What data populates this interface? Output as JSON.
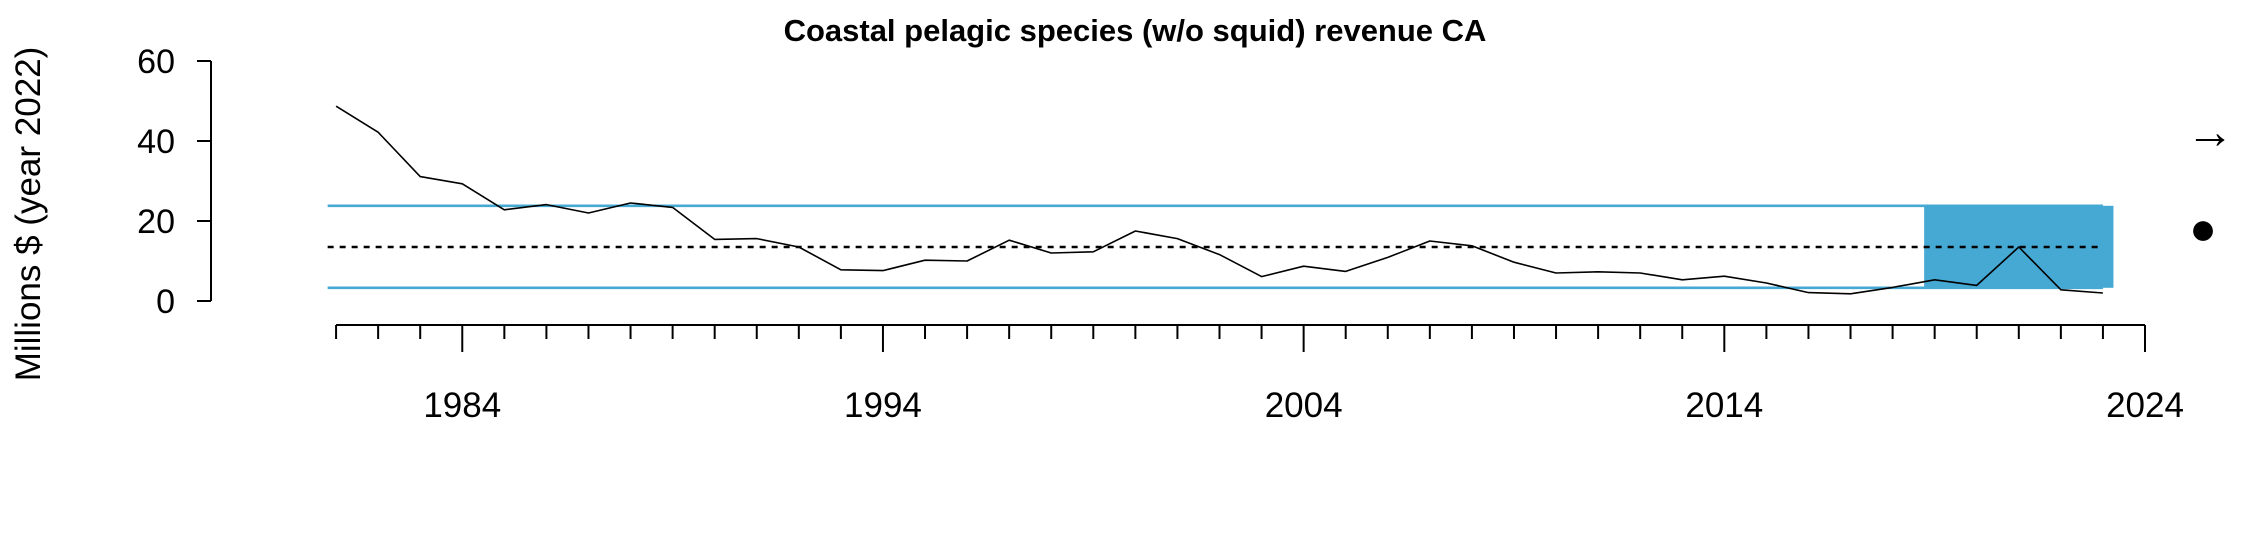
{
  "chart_data": {
    "type": "line",
    "title": "Coastal pelagic species (w/o squid) revenue CA",
    "xlabel": "",
    "ylabel": "Millions $ (year 2022)",
    "xlim": [
      1980,
      2024
    ],
    "ylim": [
      0,
      60
    ],
    "x_ticks": [
      1984,
      1994,
      2004,
      2014,
      2024
    ],
    "y_ticks": [
      0,
      20,
      40,
      60
    ],
    "x": [
      1981,
      1982,
      1983,
      1984,
      1985,
      1986,
      1987,
      1988,
      1989,
      1990,
      1991,
      1992,
      1993,
      1994,
      1995,
      1996,
      1997,
      1998,
      1999,
      2000,
      2001,
      2002,
      2003,
      2004,
      2005,
      2006,
      2007,
      2008,
      2009,
      2010,
      2011,
      2012,
      2013,
      2014,
      2015,
      2016,
      2017,
      2018,
      2019,
      2020,
      2021,
      2022,
      2023
    ],
    "series": [
      {
        "values": [
          48.7,
          42.2,
          31.1,
          29.3,
          22.8,
          24.1,
          22.0,
          24.5,
          23.4,
          15.4,
          15.6,
          13.5,
          7.8,
          7.6,
          10.2,
          10.0,
          15.2,
          12.0,
          12.3,
          17.5,
          15.6,
          11.6,
          6.1,
          8.7,
          7.4,
          10.9,
          15.0,
          13.8,
          9.7,
          7.0,
          7.3,
          7.0,
          5.3,
          6.2,
          4.5,
          2.1,
          1.8,
          3.4,
          5.3,
          3.9,
          13.5,
          2.8,
          2.0
        ]
      }
    ],
    "mean": 13.5,
    "upper_sd": 23.8,
    "lower_sd": 3.3,
    "recent_window": [
      2019,
      2023
    ],
    "trend_symbol": "→",
    "status_symbol": "●",
    "colors": {
      "band": "#45a9d4",
      "line": "#000000",
      "axis": "#000000"
    }
  }
}
